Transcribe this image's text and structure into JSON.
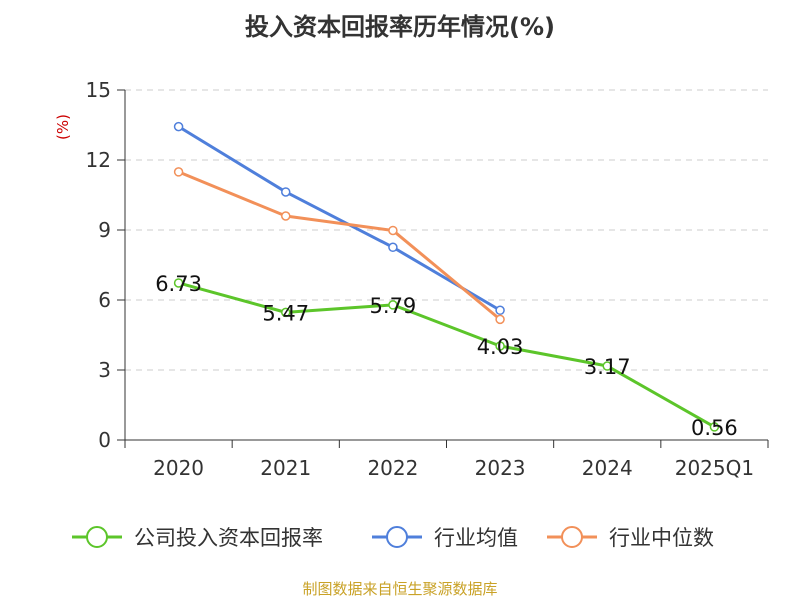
{
  "chart_data": {
    "type": "line",
    "title": "投入资本回报率历年情况(%)",
    "ylabel": "(%)",
    "categories": [
      "2020",
      "2021",
      "2022",
      "2023",
      "2024",
      "2025Q1"
    ],
    "yticks": [
      "0",
      "3",
      "6",
      "9",
      "12",
      "15"
    ],
    "ylim": [
      0,
      15
    ],
    "grid": true,
    "legend_position": "bottom",
    "series": [
      {
        "name": "公司投入资本回报率",
        "color": "#5cc52a",
        "values": [
          6.73,
          5.47,
          5.79,
          4.03,
          3.17,
          0.56
        ],
        "labels": [
          "6.73",
          "5.47",
          "5.79",
          "4.03",
          "3.17",
          "0.56"
        ]
      },
      {
        "name": "行业均值",
        "color": "#4f7fdb",
        "values": [
          13.43,
          10.63,
          8.26,
          5.56,
          null,
          null
        ]
      },
      {
        "name": "行业中位数",
        "color": "#f29059",
        "values": [
          11.49,
          9.6,
          8.98,
          5.17,
          null,
          null
        ]
      }
    ],
    "source": "制图数据来自恒生聚源数据库"
  }
}
